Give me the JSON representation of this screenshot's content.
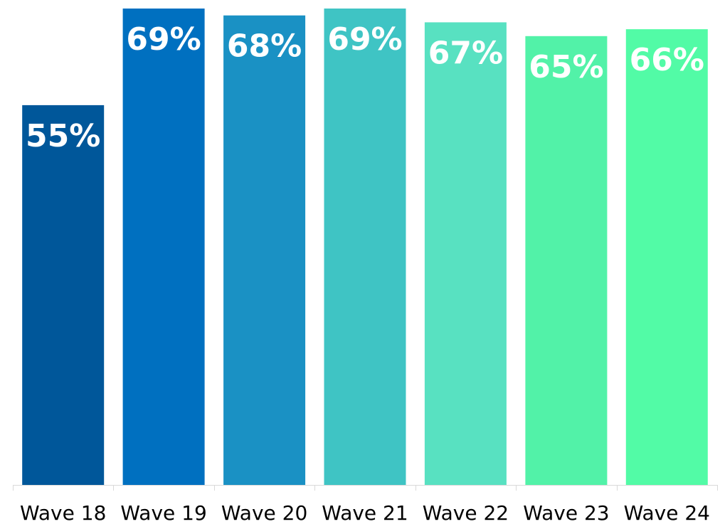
{
  "chart_data": {
    "type": "bar",
    "categories": [
      "Wave 18",
      "Wave 19",
      "Wave 20",
      "Wave 21",
      "Wave 22",
      "Wave 23",
      "Wave 24"
    ],
    "values": [
      55,
      69,
      68,
      69,
      67,
      65,
      66
    ],
    "value_labels": [
      "55%",
      "69%",
      "68%",
      "69%",
      "67%",
      "65%",
      "66%"
    ],
    "title": "",
    "xlabel": "",
    "ylabel": "",
    "ylim": [
      0,
      69
    ],
    "grid": false,
    "colors": [
      "#00579a",
      "#0070c0",
      "#1a91c4",
      "#3fc4c4",
      "#58e1c1",
      "#52f2a8",
      "#52fba6"
    ]
  }
}
